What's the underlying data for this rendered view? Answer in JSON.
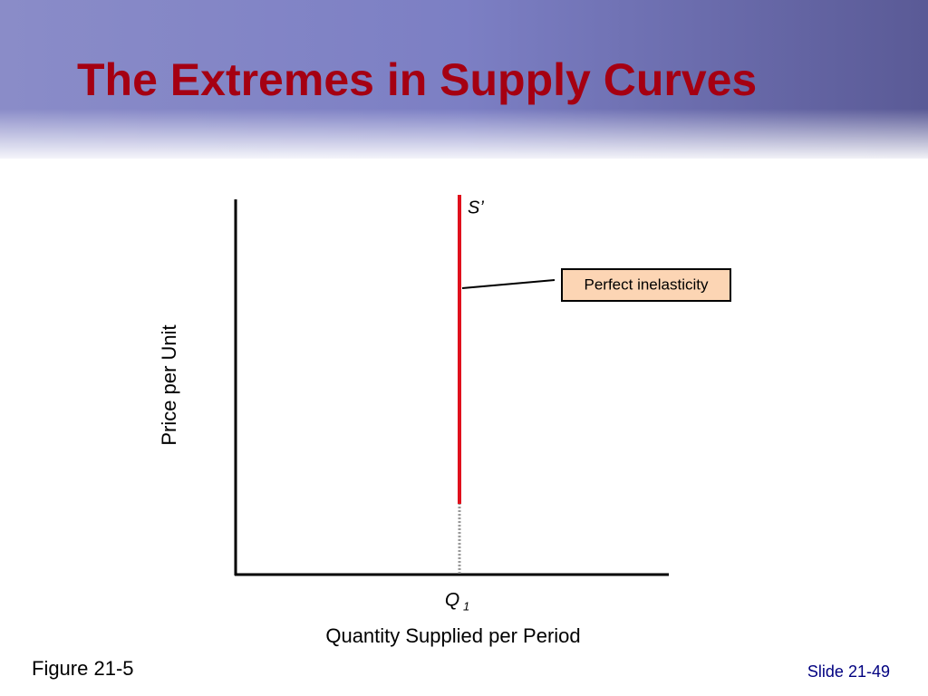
{
  "header": {
    "title": "The Extremes in Supply Curves"
  },
  "diagram": {
    "curve_label": "S’",
    "annotation": "Perfect inelasticity",
    "y_axis_label": "Price per Unit",
    "x_axis_label": "Quantity Supplied per Period",
    "x_point_label": {
      "main": "Q",
      "sub": "1"
    }
  },
  "footer": {
    "figure": "Figure 21-5",
    "slide": "Slide 21-49"
  }
}
